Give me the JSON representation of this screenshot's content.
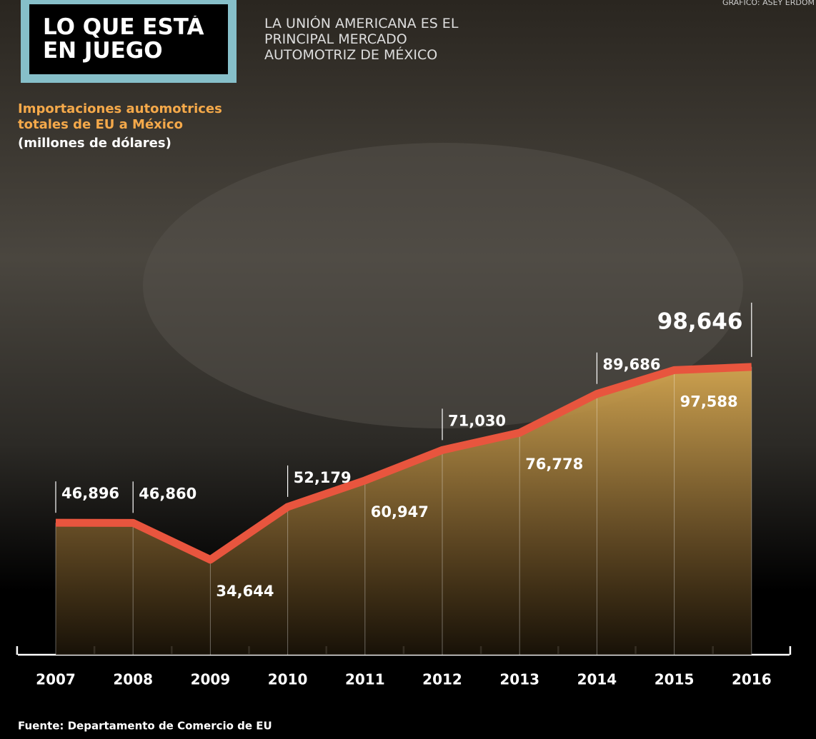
{
  "chart_data": {
    "type": "line",
    "title": "LO QUE ESTÁ EN JUEGO",
    "subtitle": "LA UNIÓN AMERICANA ES EL PRINCIPAL MERCADO AUTOMOTRIZ DE MÉXICO",
    "y_label": "Importaciones automotrices totales de EU a México",
    "y_unit": "(millones de dólares)",
    "source": "Fuente: Departamento de Comercio de EU",
    "credit": "GRÁFICO: ASEY ERDOM",
    "categories": [
      "2007",
      "2008",
      "2009",
      "2010",
      "2011",
      "2012",
      "2013",
      "2014",
      "2015",
      "2016"
    ],
    "values": [
      46896,
      46860,
      34644,
      52179,
      60947,
      71030,
      76778,
      89686,
      97588,
      98646
    ],
    "value_labels": [
      "46,896",
      "46,860",
      "34,644",
      "52,179",
      "60,947",
      "71,030",
      "76,778",
      "89,686",
      "97,588",
      "98,646"
    ],
    "color": "#e8553e",
    "ylim": [
      0,
      110000
    ]
  }
}
